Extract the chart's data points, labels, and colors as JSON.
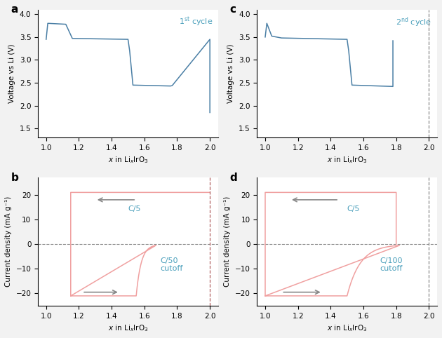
{
  "fig_width": 6.3,
  "fig_height": 4.82,
  "dpi": 100,
  "bg_color": "#f2f2f2",
  "panel_bg": "#ffffff",
  "voltage_color": "#4a7fa5",
  "current_color": "#f0a0a0",
  "arrow_color": "#888888",
  "label_color": "#4a9fbb",
  "dashed_color": "#888888",
  "dashed_red_color": "#b06060",
  "xlim": [
    0.95,
    2.05
  ],
  "xticks": [
    1.0,
    1.2,
    1.4,
    1.6,
    1.8,
    2.0
  ],
  "voltage_ylim": [
    1.3,
    4.1
  ],
  "voltage_yticks": [
    1.5,
    2.0,
    2.5,
    3.0,
    3.5,
    4.0
  ],
  "current_ylim": [
    -25,
    27
  ],
  "current_yticks": [
    -20,
    -10,
    0,
    10,
    20
  ],
  "ylabel_voltage": "Voltage vs Li (V)",
  "ylabel_current": "Current density (mA g⁻¹)"
}
